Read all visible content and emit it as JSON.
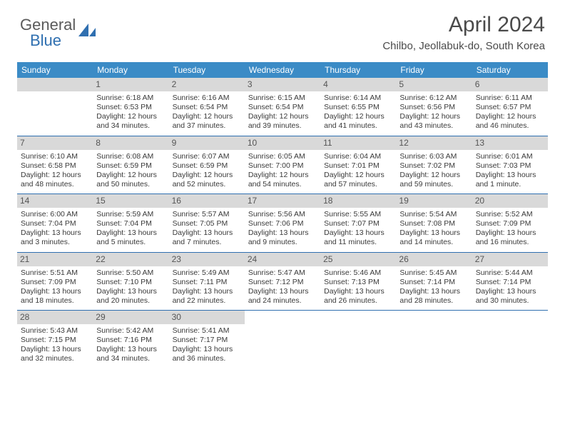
{
  "brand": {
    "general": "General",
    "blue": "Blue"
  },
  "title": "April 2024",
  "location": "Chilbo, Jeollabuk-do, South Korea",
  "colors": {
    "header_bg": "#3b8bc6",
    "header_text": "#ffffff",
    "daynum_bg": "#d9d9d9",
    "brand_blue": "#2f6fb0",
    "rule": "#2f6fb0"
  },
  "daynames": [
    "Sunday",
    "Monday",
    "Tuesday",
    "Wednesday",
    "Thursday",
    "Friday",
    "Saturday"
  ],
  "weeks": [
    [
      {
        "num": "",
        "sunrise": "",
        "sunset": "",
        "daylight": ""
      },
      {
        "num": "1",
        "sunrise": "Sunrise: 6:18 AM",
        "sunset": "Sunset: 6:53 PM",
        "daylight": "Daylight: 12 hours and 34 minutes."
      },
      {
        "num": "2",
        "sunrise": "Sunrise: 6:16 AM",
        "sunset": "Sunset: 6:54 PM",
        "daylight": "Daylight: 12 hours and 37 minutes."
      },
      {
        "num": "3",
        "sunrise": "Sunrise: 6:15 AM",
        "sunset": "Sunset: 6:54 PM",
        "daylight": "Daylight: 12 hours and 39 minutes."
      },
      {
        "num": "4",
        "sunrise": "Sunrise: 6:14 AM",
        "sunset": "Sunset: 6:55 PM",
        "daylight": "Daylight: 12 hours and 41 minutes."
      },
      {
        "num": "5",
        "sunrise": "Sunrise: 6:12 AM",
        "sunset": "Sunset: 6:56 PM",
        "daylight": "Daylight: 12 hours and 43 minutes."
      },
      {
        "num": "6",
        "sunrise": "Sunrise: 6:11 AM",
        "sunset": "Sunset: 6:57 PM",
        "daylight": "Daylight: 12 hours and 46 minutes."
      }
    ],
    [
      {
        "num": "7",
        "sunrise": "Sunrise: 6:10 AM",
        "sunset": "Sunset: 6:58 PM",
        "daylight": "Daylight: 12 hours and 48 minutes."
      },
      {
        "num": "8",
        "sunrise": "Sunrise: 6:08 AM",
        "sunset": "Sunset: 6:59 PM",
        "daylight": "Daylight: 12 hours and 50 minutes."
      },
      {
        "num": "9",
        "sunrise": "Sunrise: 6:07 AM",
        "sunset": "Sunset: 6:59 PM",
        "daylight": "Daylight: 12 hours and 52 minutes."
      },
      {
        "num": "10",
        "sunrise": "Sunrise: 6:05 AM",
        "sunset": "Sunset: 7:00 PM",
        "daylight": "Daylight: 12 hours and 54 minutes."
      },
      {
        "num": "11",
        "sunrise": "Sunrise: 6:04 AM",
        "sunset": "Sunset: 7:01 PM",
        "daylight": "Daylight: 12 hours and 57 minutes."
      },
      {
        "num": "12",
        "sunrise": "Sunrise: 6:03 AM",
        "sunset": "Sunset: 7:02 PM",
        "daylight": "Daylight: 12 hours and 59 minutes."
      },
      {
        "num": "13",
        "sunrise": "Sunrise: 6:01 AM",
        "sunset": "Sunset: 7:03 PM",
        "daylight": "Daylight: 13 hours and 1 minute."
      }
    ],
    [
      {
        "num": "14",
        "sunrise": "Sunrise: 6:00 AM",
        "sunset": "Sunset: 7:04 PM",
        "daylight": "Daylight: 13 hours and 3 minutes."
      },
      {
        "num": "15",
        "sunrise": "Sunrise: 5:59 AM",
        "sunset": "Sunset: 7:04 PM",
        "daylight": "Daylight: 13 hours and 5 minutes."
      },
      {
        "num": "16",
        "sunrise": "Sunrise: 5:57 AM",
        "sunset": "Sunset: 7:05 PM",
        "daylight": "Daylight: 13 hours and 7 minutes."
      },
      {
        "num": "17",
        "sunrise": "Sunrise: 5:56 AM",
        "sunset": "Sunset: 7:06 PM",
        "daylight": "Daylight: 13 hours and 9 minutes."
      },
      {
        "num": "18",
        "sunrise": "Sunrise: 5:55 AM",
        "sunset": "Sunset: 7:07 PM",
        "daylight": "Daylight: 13 hours and 11 minutes."
      },
      {
        "num": "19",
        "sunrise": "Sunrise: 5:54 AM",
        "sunset": "Sunset: 7:08 PM",
        "daylight": "Daylight: 13 hours and 14 minutes."
      },
      {
        "num": "20",
        "sunrise": "Sunrise: 5:52 AM",
        "sunset": "Sunset: 7:09 PM",
        "daylight": "Daylight: 13 hours and 16 minutes."
      }
    ],
    [
      {
        "num": "21",
        "sunrise": "Sunrise: 5:51 AM",
        "sunset": "Sunset: 7:09 PM",
        "daylight": "Daylight: 13 hours and 18 minutes."
      },
      {
        "num": "22",
        "sunrise": "Sunrise: 5:50 AM",
        "sunset": "Sunset: 7:10 PM",
        "daylight": "Daylight: 13 hours and 20 minutes."
      },
      {
        "num": "23",
        "sunrise": "Sunrise: 5:49 AM",
        "sunset": "Sunset: 7:11 PM",
        "daylight": "Daylight: 13 hours and 22 minutes."
      },
      {
        "num": "24",
        "sunrise": "Sunrise: 5:47 AM",
        "sunset": "Sunset: 7:12 PM",
        "daylight": "Daylight: 13 hours and 24 minutes."
      },
      {
        "num": "25",
        "sunrise": "Sunrise: 5:46 AM",
        "sunset": "Sunset: 7:13 PM",
        "daylight": "Daylight: 13 hours and 26 minutes."
      },
      {
        "num": "26",
        "sunrise": "Sunrise: 5:45 AM",
        "sunset": "Sunset: 7:14 PM",
        "daylight": "Daylight: 13 hours and 28 minutes."
      },
      {
        "num": "27",
        "sunrise": "Sunrise: 5:44 AM",
        "sunset": "Sunset: 7:14 PM",
        "daylight": "Daylight: 13 hours and 30 minutes."
      }
    ],
    [
      {
        "num": "28",
        "sunrise": "Sunrise: 5:43 AM",
        "sunset": "Sunset: 7:15 PM",
        "daylight": "Daylight: 13 hours and 32 minutes."
      },
      {
        "num": "29",
        "sunrise": "Sunrise: 5:42 AM",
        "sunset": "Sunset: 7:16 PM",
        "daylight": "Daylight: 13 hours and 34 minutes."
      },
      {
        "num": "30",
        "sunrise": "Sunrise: 5:41 AM",
        "sunset": "Sunset: 7:17 PM",
        "daylight": "Daylight: 13 hours and 36 minutes."
      },
      {
        "num": "",
        "sunrise": "",
        "sunset": "",
        "daylight": ""
      },
      {
        "num": "",
        "sunrise": "",
        "sunset": "",
        "daylight": ""
      },
      {
        "num": "",
        "sunrise": "",
        "sunset": "",
        "daylight": ""
      },
      {
        "num": "",
        "sunrise": "",
        "sunset": "",
        "daylight": ""
      }
    ]
  ]
}
